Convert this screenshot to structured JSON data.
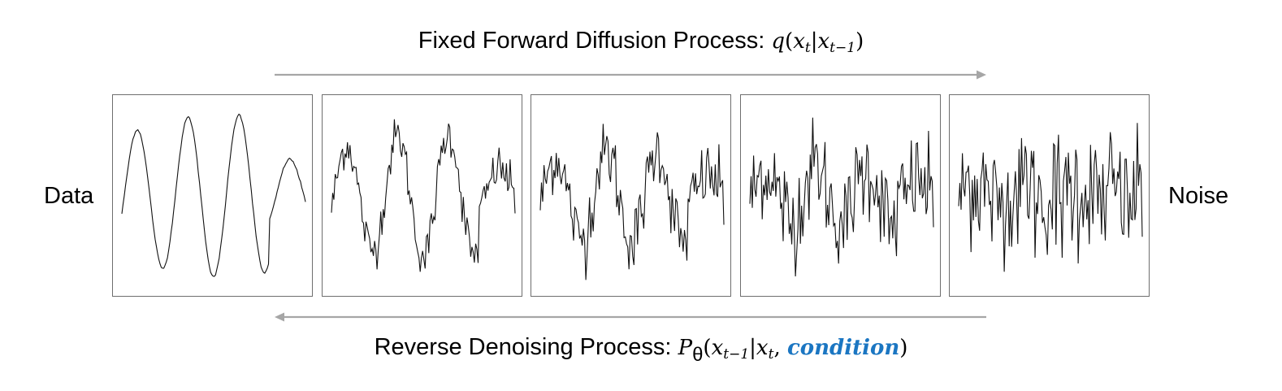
{
  "forward": {
    "text": "Fixed Forward Diffusion Process: ",
    "math_fn": "q",
    "math_var": "x",
    "sub_t": "t",
    "sub_tm1": "t−1"
  },
  "reverse": {
    "text": "Reverse Denoising Process: ",
    "math_fn": "P",
    "theta": "θ",
    "math_var": "x",
    "sub_t": "t",
    "sub_tm1": "t−1",
    "condition": "condition",
    "condition_color": "#1b76c2"
  },
  "labels": {
    "data": "Data",
    "noise": "Noise"
  },
  "arrow_color": "#a6a6a6",
  "panel_count": 5,
  "noise_levels": [
    0,
    0.28,
    0.5,
    0.75,
    1.0
  ]
}
